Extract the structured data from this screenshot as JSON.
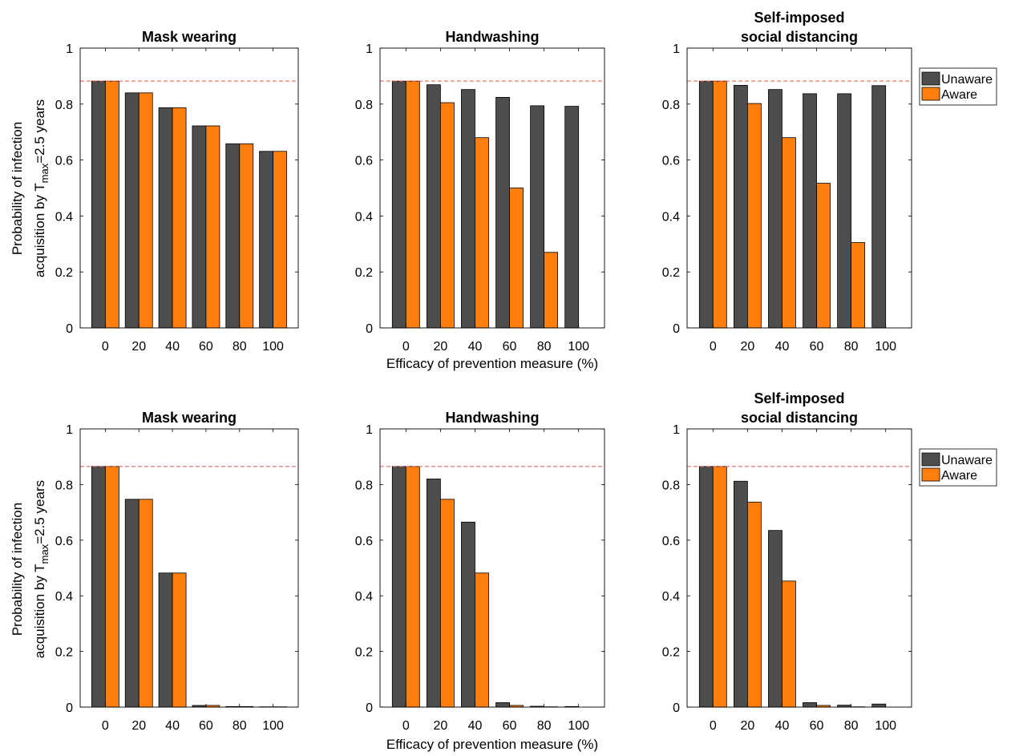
{
  "figure": {
    "ylabel_line1": "Probability of infection",
    "ylabel_line2_prefix": "acquisition by T",
    "ylabel_sub": "max",
    "ylabel_line2_suffix": "=2.5 years",
    "xlabel": "Efficacy of prevention measure (%)"
  },
  "colors": {
    "unaware": "#4d4d4d",
    "aware": "#ff7f0e",
    "baseline": "#e8584a"
  },
  "chart_data": [
    {
      "type": "bar",
      "title_lines": [
        "Mask wearing"
      ],
      "categories": [
        "0",
        "20",
        "40",
        "60",
        "80",
        "100"
      ],
      "series": [
        {
          "name": "Unaware",
          "values": [
            0.882,
            0.84,
            0.787,
            0.722,
            0.658,
            0.631
          ]
        },
        {
          "name": "Aware",
          "values": [
            0.882,
            0.84,
            0.787,
            0.722,
            0.658,
            0.631
          ]
        }
      ],
      "baseline": 0.882,
      "ylim": [
        0,
        1
      ],
      "yticks": [
        "0",
        "0.2",
        "0.4",
        "0.6",
        "0.8",
        "1"
      ],
      "show_legend": false
    },
    {
      "type": "bar",
      "title_lines": [
        "Handwashing"
      ],
      "categories": [
        "0",
        "20",
        "40",
        "60",
        "80",
        "100"
      ],
      "series": [
        {
          "name": "Unaware",
          "values": [
            0.882,
            0.869,
            0.852,
            0.824,
            0.794,
            0.792
          ]
        },
        {
          "name": "Aware",
          "values": [
            0.882,
            0.805,
            0.68,
            0.5,
            0.27,
            0.0
          ]
        }
      ],
      "baseline": 0.882,
      "ylim": [
        0,
        1
      ],
      "yticks": [
        "0",
        "0.2",
        "0.4",
        "0.6",
        "0.8",
        "1"
      ],
      "show_legend": false
    },
    {
      "type": "bar",
      "title_lines": [
        "Self-imposed",
        "social distancing"
      ],
      "categories": [
        "0",
        "20",
        "40",
        "60",
        "80",
        "100"
      ],
      "series": [
        {
          "name": "Unaware",
          "values": [
            0.882,
            0.867,
            0.852,
            0.837,
            0.837,
            0.866
          ]
        },
        {
          "name": "Aware",
          "values": [
            0.882,
            0.802,
            0.68,
            0.517,
            0.305,
            0.0
          ]
        }
      ],
      "baseline": 0.882,
      "ylim": [
        0,
        1
      ],
      "yticks": [
        "0",
        "0.2",
        "0.4",
        "0.6",
        "0.8",
        "1"
      ],
      "legend": {
        "placement": "outside-top-right",
        "entries": [
          "Unaware",
          "Aware"
        ]
      },
      "show_legend": true
    },
    {
      "type": "bar",
      "title_lines": [
        "Mask wearing"
      ],
      "categories": [
        "0",
        "20",
        "40",
        "60",
        "80",
        "100"
      ],
      "series": [
        {
          "name": "Unaware",
          "values": [
            0.865,
            0.747,
            0.482,
            0.006,
            0.002,
            0.001
          ]
        },
        {
          "name": "Aware",
          "values": [
            0.865,
            0.747,
            0.482,
            0.006,
            0.002,
            0.001
          ]
        }
      ],
      "baseline": 0.865,
      "ylim": [
        0,
        1
      ],
      "yticks": [
        "0",
        "0.2",
        "0.4",
        "0.6",
        "0.8",
        "1"
      ],
      "show_legend": false
    },
    {
      "type": "bar",
      "title_lines": [
        "Handwashing"
      ],
      "categories": [
        "0",
        "20",
        "40",
        "60",
        "80",
        "100"
      ],
      "series": [
        {
          "name": "Unaware",
          "values": [
            0.865,
            0.82,
            0.665,
            0.016,
            0.003,
            0.002
          ]
        },
        {
          "name": "Aware",
          "values": [
            0.865,
            0.747,
            0.482,
            0.006,
            0.001,
            0.0
          ]
        }
      ],
      "baseline": 0.865,
      "ylim": [
        0,
        1
      ],
      "yticks": [
        "0",
        "0.2",
        "0.4",
        "0.6",
        "0.8",
        "1"
      ],
      "show_legend": false
    },
    {
      "type": "bar",
      "title_lines": [
        "Self-imposed",
        "social distancing"
      ],
      "categories": [
        "0",
        "20",
        "40",
        "60",
        "80",
        "100"
      ],
      "series": [
        {
          "name": "Unaware",
          "values": [
            0.865,
            0.812,
            0.635,
            0.016,
            0.007,
            0.011
          ]
        },
        {
          "name": "Aware",
          "values": [
            0.865,
            0.737,
            0.453,
            0.006,
            0.001,
            0.0
          ]
        }
      ],
      "baseline": 0.865,
      "ylim": [
        0,
        1
      ],
      "yticks": [
        "0",
        "0.2",
        "0.4",
        "0.6",
        "0.8",
        "1"
      ],
      "legend": {
        "placement": "outside-top-right",
        "entries": [
          "Unaware",
          "Aware"
        ]
      },
      "show_legend": true
    }
  ]
}
